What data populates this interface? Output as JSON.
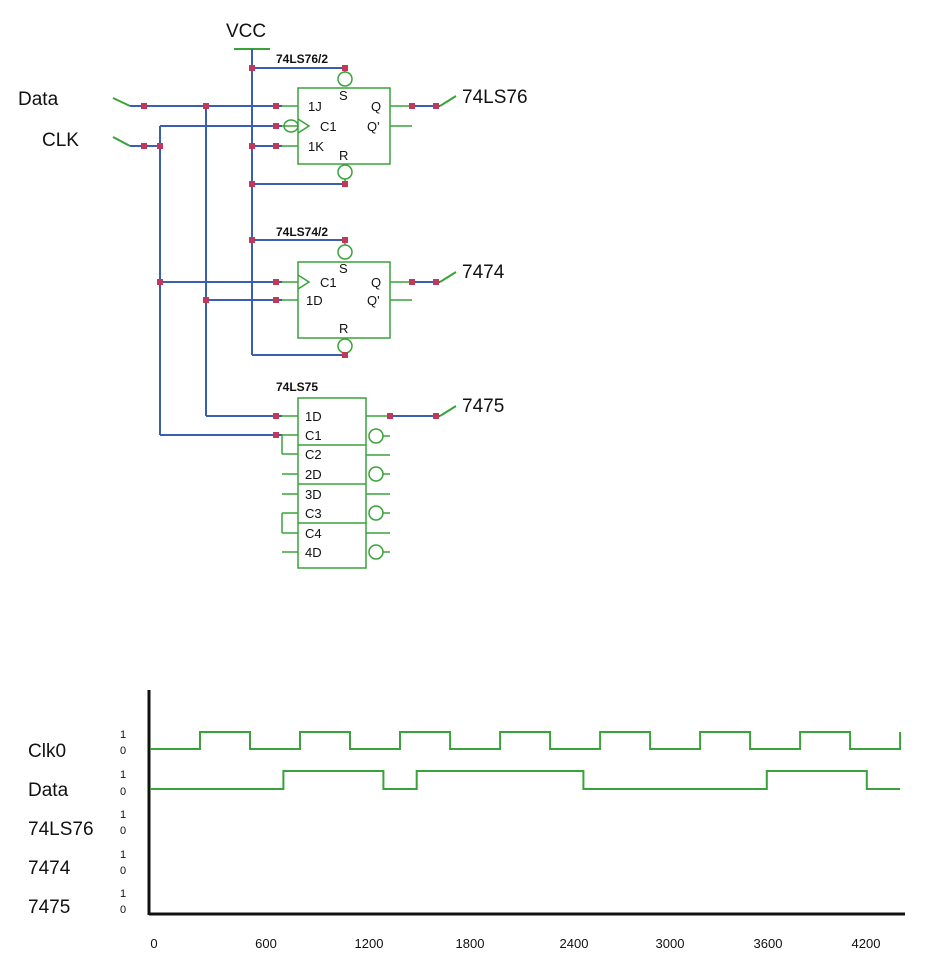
{
  "circuit": {
    "power": "VCC",
    "inputs": {
      "data": "Data",
      "clk": "CLK"
    },
    "chip_76": {
      "name": "74LS76/2",
      "pins": {
        "j": "1J",
        "c": "C1",
        "k": "1K",
        "s": "S",
        "r": "R",
        "q": "Q",
        "qn": "Q'"
      },
      "output": "74LS76"
    },
    "chip_74": {
      "name": "74LS74/2",
      "pins": {
        "c": "C1",
        "d": "1D",
        "s": "S",
        "r": "R",
        "q": "Q",
        "qn": "Q'"
      },
      "output": "7474"
    },
    "chip_75": {
      "name": "74LS75",
      "pins": {
        "d1": "1D",
        "c1": "C1",
        "c2": "C2",
        "d2": "2D",
        "d3": "3D",
        "c3": "C3",
        "c4": "C4",
        "d4": "4D"
      },
      "output": "7475"
    },
    "colors": {
      "wire": "#3a5fb0",
      "component": "#3aa23a",
      "node": "#c0385a"
    }
  },
  "timing": {
    "signals": [
      {
        "name": "Clk0",
        "high": "1",
        "low": "0"
      },
      {
        "name": "Data",
        "high": "1",
        "low": "0"
      },
      {
        "name": "74LS76",
        "high": "1",
        "low": "0"
      },
      {
        "name": "7474",
        "high": "1",
        "low": "0"
      },
      {
        "name": "7475",
        "high": "1",
        "low": "0"
      }
    ],
    "ticks": [
      "0",
      "600",
      "1200",
      "1800",
      "2400",
      "3000",
      "3600",
      "4200"
    ]
  },
  "chart_data": {
    "type": "line",
    "title": "",
    "xlabel": "",
    "ylabel": "",
    "xlim": [
      0,
      4500
    ],
    "series": [
      {
        "name": "Clk0",
        "x": [
          0,
          300,
          300,
          600,
          600,
          900,
          900,
          1200,
          1200,
          1500,
          1500,
          1800,
          1800,
          2100,
          2100,
          2400,
          2400,
          2700,
          2700,
          3000,
          3000,
          3300,
          3300,
          3600,
          3600,
          3900,
          3900,
          4200,
          4200,
          4500,
          4500
        ],
        "y": [
          0,
          0,
          1,
          1,
          0,
          0,
          1,
          1,
          0,
          0,
          1,
          1,
          0,
          0,
          1,
          1,
          0,
          0,
          1,
          1,
          0,
          0,
          1,
          1,
          0,
          0,
          1,
          1,
          0,
          0,
          1
        ]
      },
      {
        "name": "Data",
        "x": [
          0,
          800,
          800,
          1400,
          1400,
          1600,
          1600,
          2600,
          2600,
          3700,
          3700,
          4300,
          4300,
          4500
        ],
        "y": [
          0,
          0,
          1,
          1,
          0,
          0,
          1,
          1,
          0,
          0,
          1,
          1,
          0,
          0
        ]
      },
      {
        "name": "74LS76",
        "x": [],
        "y": []
      },
      {
        "name": "7474",
        "x": [],
        "y": []
      },
      {
        "name": "7475",
        "x": [],
        "y": []
      }
    ]
  }
}
